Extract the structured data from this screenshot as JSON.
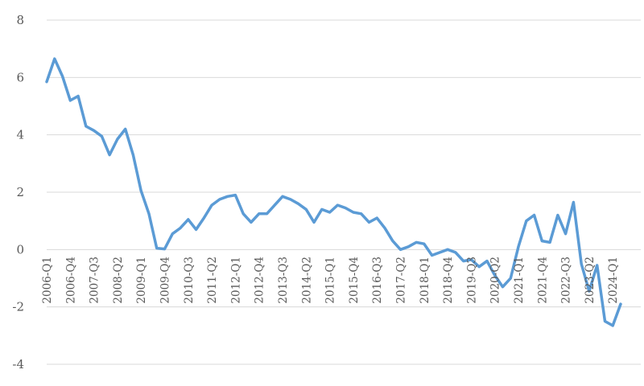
{
  "chart_data": {
    "type": "line",
    "title": "",
    "xlabel": "",
    "ylabel": "",
    "ylim": [
      -4,
      8
    ],
    "yticks": [
      -4,
      -2,
      0,
      2,
      4,
      6,
      8
    ],
    "grid": "horizontal",
    "legend": "none",
    "line_color": "#5b9bd5",
    "x_tick_labels": [
      "2006-Q1",
      "2006-Q4",
      "2007-Q3",
      "2008-Q2",
      "2009-Q1",
      "2009-Q4",
      "2010-Q3",
      "2011-Q2",
      "2012-Q1",
      "2012-Q4",
      "2013-Q3",
      "2014-Q2",
      "2015-Q1",
      "2015-Q4",
      "2016-Q3",
      "2017-Q2",
      "2018-Q1",
      "2018-Q4",
      "2019-Q3",
      "2020-Q2",
      "2021-Q1",
      "2021-Q4",
      "2022-Q3",
      "2023-Q2",
      "2024-Q1"
    ],
    "x": [
      "2006-Q1",
      "2006-Q2",
      "2006-Q3",
      "2006-Q4",
      "2007-Q1",
      "2007-Q2",
      "2007-Q3",
      "2007-Q4",
      "2008-Q1",
      "2008-Q2",
      "2008-Q3",
      "2008-Q4",
      "2009-Q1",
      "2009-Q2",
      "2009-Q3",
      "2009-Q4",
      "2010-Q1",
      "2010-Q2",
      "2010-Q3",
      "2010-Q4",
      "2011-Q1",
      "2011-Q2",
      "2011-Q3",
      "2011-Q4",
      "2012-Q1",
      "2012-Q2",
      "2012-Q3",
      "2012-Q4",
      "2013-Q1",
      "2013-Q2",
      "2013-Q3",
      "2013-Q4",
      "2014-Q1",
      "2014-Q2",
      "2014-Q3",
      "2014-Q4",
      "2015-Q1",
      "2015-Q2",
      "2015-Q3",
      "2015-Q4",
      "2016-Q1",
      "2016-Q2",
      "2016-Q3",
      "2016-Q4",
      "2017-Q1",
      "2017-Q2",
      "2017-Q3",
      "2017-Q4",
      "2018-Q1",
      "2018-Q2",
      "2018-Q3",
      "2018-Q4",
      "2019-Q1",
      "2019-Q2",
      "2019-Q3",
      "2019-Q4",
      "2020-Q1",
      "2020-Q2",
      "2020-Q3",
      "2020-Q4",
      "2021-Q1",
      "2021-Q2",
      "2021-Q3",
      "2021-Q4",
      "2022-Q1",
      "2022-Q2",
      "2022-Q3",
      "2022-Q4",
      "2023-Q1",
      "2023-Q2",
      "2023-Q3",
      "2023-Q4",
      "2024-Q1",
      "2024-Q2"
    ],
    "values": [
      5.85,
      6.65,
      6.05,
      5.2,
      5.35,
      4.3,
      4.15,
      3.95,
      3.3,
      3.85,
      4.2,
      3.3,
      2.05,
      1.25,
      0.05,
      0.02,
      0.55,
      0.75,
      1.05,
      0.7,
      1.1,
      1.55,
      1.75,
      1.85,
      1.9,
      1.25,
      0.95,
      1.25,
      1.25,
      1.55,
      1.85,
      1.75,
      1.6,
      1.4,
      0.95,
      1.4,
      1.3,
      1.55,
      1.45,
      1.3,
      1.25,
      0.95,
      1.1,
      0.75,
      0.3,
      0.0,
      0.1,
      0.25,
      0.2,
      -0.2,
      -0.1,
      0.0,
      -0.1,
      -0.4,
      -0.35,
      -0.6,
      -0.4,
      -0.9,
      -1.3,
      -1.0,
      0.1,
      1.0,
      1.2,
      0.3,
      0.25,
      1.2,
      0.55,
      1.65,
      -0.5,
      -1.45,
      -0.55,
      -2.5,
      -2.65,
      -1.9
    ]
  }
}
